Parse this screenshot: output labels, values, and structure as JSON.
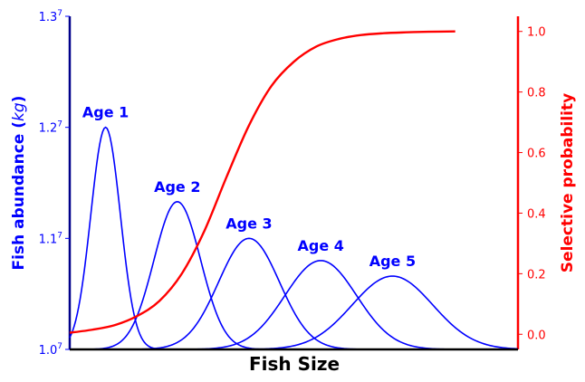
{
  "chart_data": {
    "type": "line",
    "xlabel": "Fish Size",
    "ylabel_left": {
      "prefix": "Fish abundance (",
      "unit": "kg",
      "suffix": ")"
    },
    "ylabel_right": "Selective probability",
    "x_range": [
      0,
      1
    ],
    "left_axis": {
      "ylim": [
        1.0,
        1.3
      ],
      "ticks": [
        {
          "value": 1.0,
          "base": "1.0",
          "exp": "7"
        },
        {
          "value": 1.1,
          "base": "1.1",
          "exp": "7"
        },
        {
          "value": 1.2,
          "base": "1.2",
          "exp": "7"
        },
        {
          "value": 1.3,
          "base": "1.3",
          "exp": "7"
        }
      ]
    },
    "right_axis": {
      "ylim": [
        -0.05,
        1.05
      ],
      "ticks": [
        0.0,
        0.2,
        0.4,
        0.6,
        0.8,
        1.0
      ],
      "tick_labels": [
        "0.0",
        "0.2",
        "0.4",
        "0.6",
        "0.8",
        "1.0"
      ]
    },
    "age_series": [
      {
        "name": "Age 1",
        "peak_x": 0.08,
        "peak_y": 1.2,
        "sigma": 0.033
      },
      {
        "name": "Age 2",
        "peak_x": 0.24,
        "peak_y": 1.133,
        "sigma": 0.052
      },
      {
        "name": "Age 3",
        "peak_x": 0.4,
        "peak_y": 1.1,
        "sigma": 0.068
      },
      {
        "name": "Age 4",
        "peak_x": 0.56,
        "peak_y": 1.08,
        "sigma": 0.08
      },
      {
        "name": "Age 5",
        "peak_x": 0.72,
        "peak_y": 1.066,
        "sigma": 0.09
      }
    ],
    "selectivity_curve": {
      "points": [
        [
          0.0,
          0.005
        ],
        [
          0.05,
          0.015
        ],
        [
          0.1,
          0.03
        ],
        [
          0.15,
          0.06
        ],
        [
          0.2,
          0.11
        ],
        [
          0.25,
          0.2
        ],
        [
          0.3,
          0.34
        ],
        [
          0.35,
          0.52
        ],
        [
          0.4,
          0.69
        ],
        [
          0.45,
          0.82
        ],
        [
          0.5,
          0.9
        ],
        [
          0.55,
          0.95
        ],
        [
          0.6,
          0.975
        ],
        [
          0.65,
          0.988
        ],
        [
          0.7,
          0.994
        ],
        [
          0.75,
          0.997
        ],
        [
          0.8,
          0.999
        ],
        [
          0.86,
          1.0
        ]
      ]
    },
    "colors": {
      "abundance": "#0000ff",
      "selectivity": "#ff0000",
      "axis": "#000000"
    },
    "grid": false
  }
}
